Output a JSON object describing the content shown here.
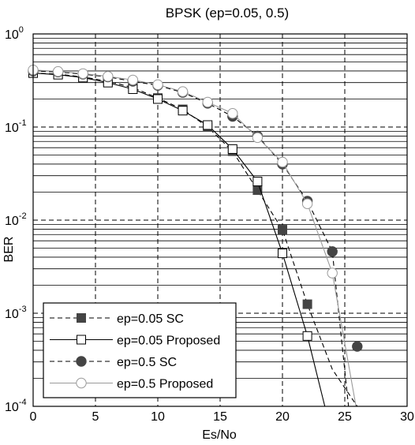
{
  "chart_data": {
    "type": "line",
    "title": "BPSK (ep=0.05, 0.5)",
    "xlabel": "Es/No",
    "ylabel": "BER",
    "xlim": [
      0,
      30
    ],
    "ylim": [
      0.0001,
      1
    ],
    "yscale": "log",
    "x_ticks": [
      "0",
      "5",
      "10",
      "15",
      "20",
      "25",
      "30"
    ],
    "y_ticks": [
      {
        "base": "10",
        "exp": "0"
      },
      {
        "base": "10",
        "exp": "-1"
      },
      {
        "base": "10",
        "exp": "-2"
      },
      {
        "base": "10",
        "exp": "-3"
      },
      {
        "base": "10",
        "exp": "-4"
      }
    ],
    "grid": true,
    "legend_position": "bottom-left",
    "series": [
      {
        "name": "ep=0.05 SC",
        "line_style": "dashed",
        "marker": "filled-square",
        "color": "#000000",
        "marker_x": [
          0,
          2,
          4,
          6,
          8,
          10,
          12,
          14,
          16,
          18,
          20,
          22
        ],
        "marker_y": [
          0.38,
          0.37,
          0.345,
          0.31,
          0.265,
          0.205,
          0.155,
          0.1,
          0.055,
          0.021,
          0.0079,
          0.00125
        ],
        "curve_x": [
          0,
          2,
          4,
          6,
          8,
          10,
          12,
          14,
          16,
          18,
          20,
          22,
          24,
          26,
          27
        ],
        "curve_y": [
          0.38,
          0.37,
          0.345,
          0.31,
          0.265,
          0.205,
          0.155,
          0.1,
          0.055,
          0.021,
          0.0079,
          0.00125,
          0.00025,
          0.0001,
          0.0001
        ]
      },
      {
        "name": "ep=0.05 Proposed",
        "line_style": "solid",
        "marker": "open-square",
        "color": "#000000",
        "marker_x": [
          0,
          2,
          4,
          6,
          8,
          10,
          12,
          14,
          16,
          18,
          20,
          22
        ],
        "marker_y": [
          0.38,
          0.365,
          0.34,
          0.3,
          0.255,
          0.2,
          0.15,
          0.105,
          0.058,
          0.026,
          0.0044,
          0.00057
        ],
        "curve_x": [
          0,
          2,
          4,
          6,
          8,
          10,
          12,
          14,
          16,
          18,
          20,
          22,
          23.4
        ],
        "curve_y": [
          0.38,
          0.365,
          0.34,
          0.3,
          0.255,
          0.2,
          0.15,
          0.105,
          0.058,
          0.026,
          0.0044,
          0.00057,
          0.0001
        ]
      },
      {
        "name": "ep=0.5 SC",
        "line_style": "dashed",
        "marker": "filled-circle",
        "color": "#000000",
        "marker_x": [
          0,
          2,
          4,
          6,
          8,
          10,
          12,
          14,
          16,
          18,
          20,
          22,
          24,
          26
        ],
        "marker_y": [
          0.4,
          0.39,
          0.37,
          0.345,
          0.31,
          0.28,
          0.235,
          0.18,
          0.13,
          0.08,
          0.04,
          0.016,
          0.0046,
          0.00044
        ],
        "curve_x": [
          0,
          2,
          4,
          6,
          8,
          10,
          12,
          14,
          16,
          18,
          20,
          22,
          24,
          25.3
        ],
        "curve_y": [
          0.4,
          0.39,
          0.37,
          0.345,
          0.31,
          0.28,
          0.235,
          0.18,
          0.13,
          0.08,
          0.04,
          0.016,
          0.0046,
          0.0001
        ]
      },
      {
        "name": "ep=0.5  Proposed",
        "line_style": "solid",
        "marker": "open-circle",
        "color": "#9a9a9a",
        "marker_x": [
          0,
          2,
          4,
          6,
          8,
          10,
          12,
          14,
          16,
          18,
          20,
          22,
          24
        ],
        "marker_y": [
          0.41,
          0.395,
          0.375,
          0.35,
          0.32,
          0.285,
          0.24,
          0.185,
          0.14,
          0.077,
          0.042,
          0.015,
          0.0027
        ],
        "curve_x": [
          0,
          2,
          4,
          6,
          8,
          10,
          12,
          14,
          16,
          18,
          20,
          22,
          24,
          25.9
        ],
        "curve_y": [
          0.41,
          0.395,
          0.375,
          0.35,
          0.32,
          0.285,
          0.24,
          0.185,
          0.14,
          0.077,
          0.042,
          0.015,
          0.0027,
          0.0001
        ]
      }
    ]
  }
}
